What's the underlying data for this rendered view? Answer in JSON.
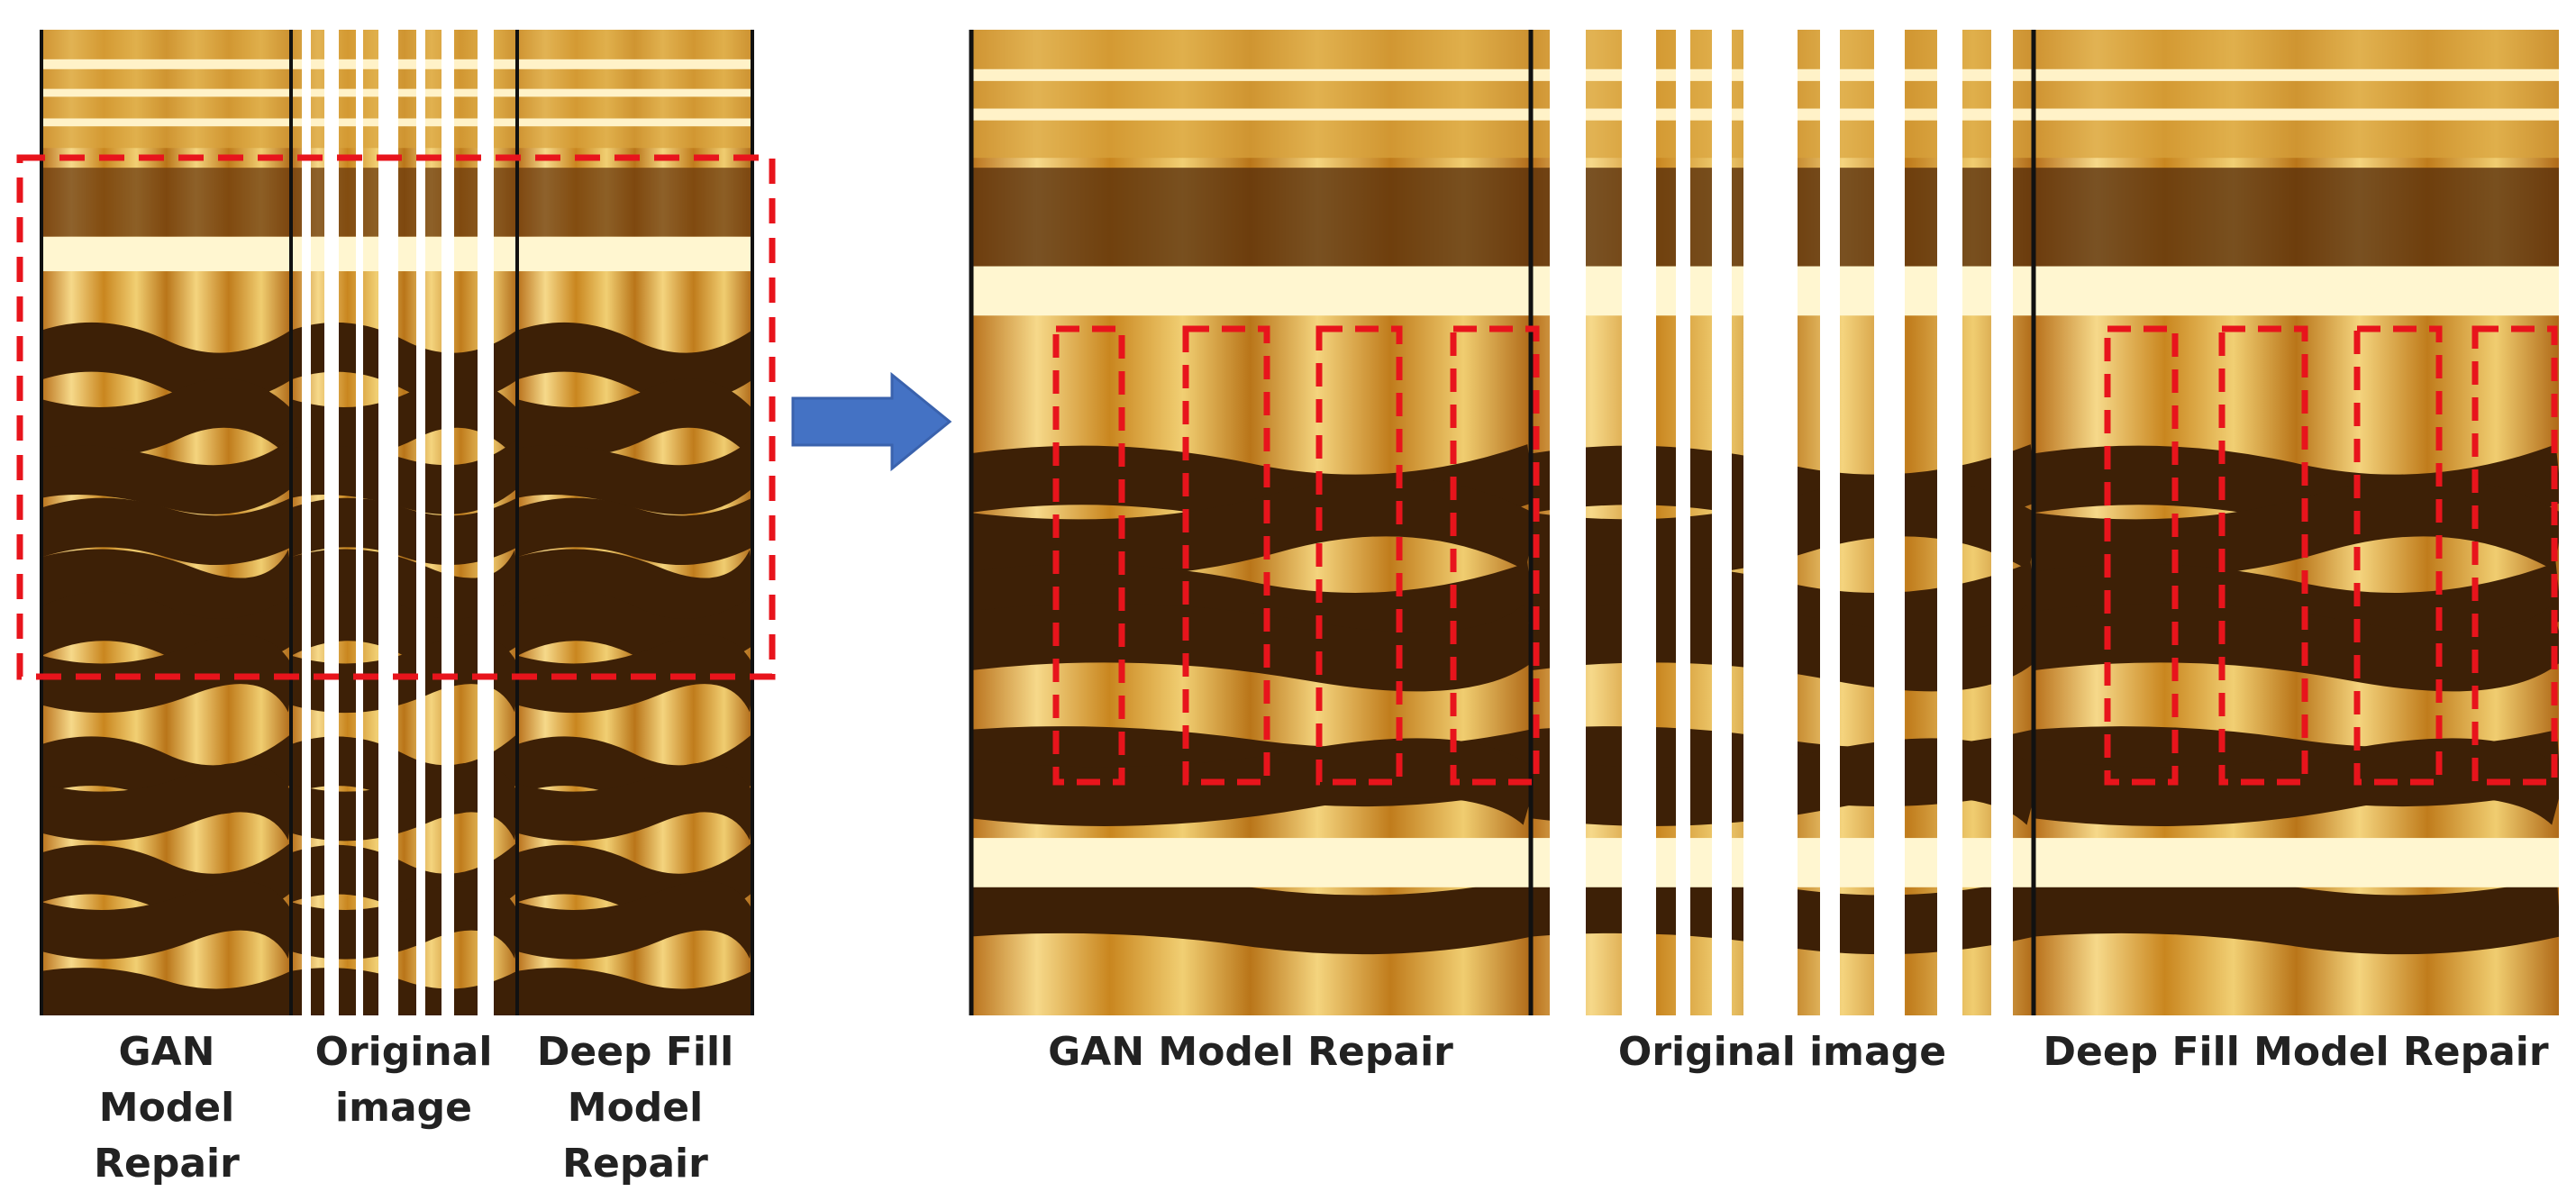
{
  "left_panel": {
    "labels": [
      [
        "GAN",
        "Model",
        "Repair"
      ],
      [
        "Original",
        "image"
      ],
      [
        "Deep Fill",
        "Model",
        "Repair"
      ]
    ]
  },
  "right_panel": {
    "labels": [
      "GAN Model Repair",
      "Original image",
      "Deep Fill Model Repair"
    ]
  }
}
